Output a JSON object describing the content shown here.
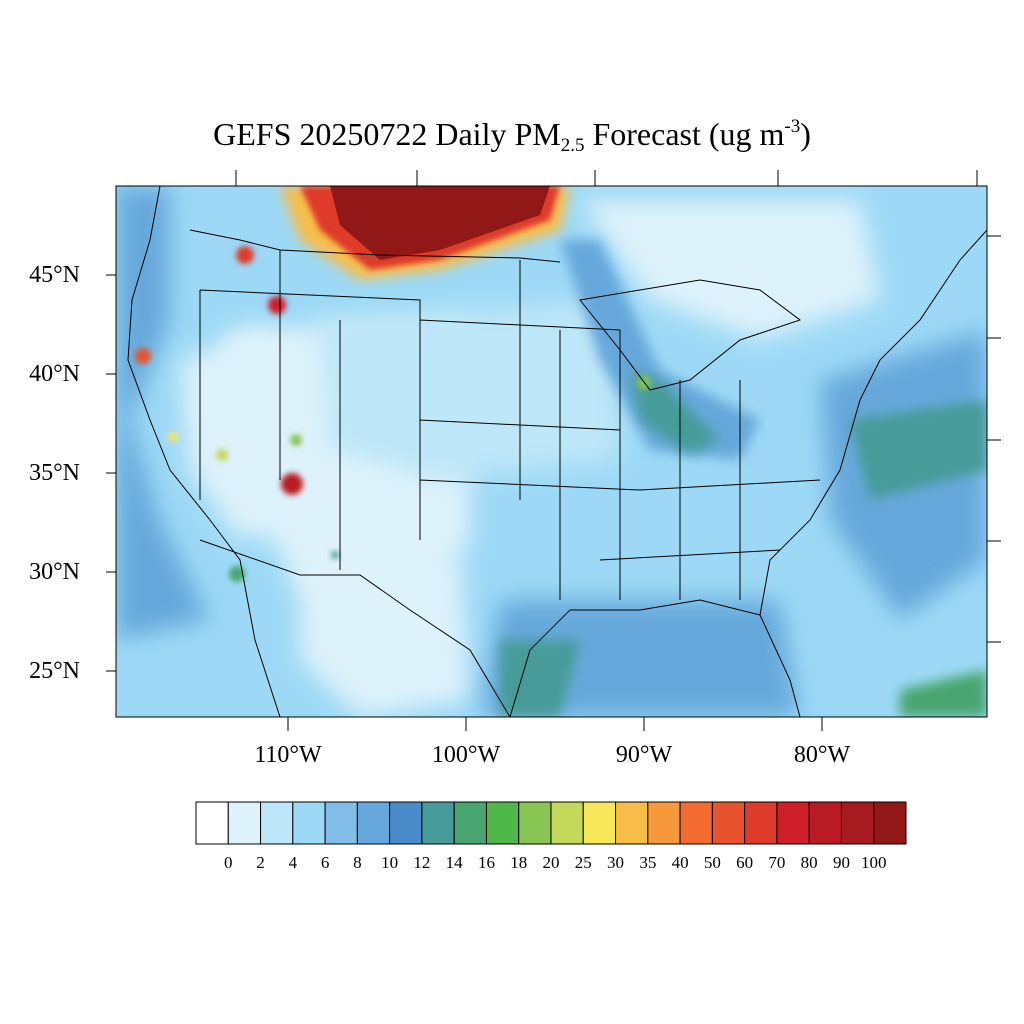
{
  "title": {
    "prefix": "GEFS 20250722 Daily PM",
    "subscript": "2.5",
    "middle": " Forecast (ug m",
    "superscript": "-3",
    "suffix": ")"
  },
  "axes": {
    "lat_labels": [
      {
        "value": 45,
        "text": "45°N"
      },
      {
        "value": 40,
        "text": "40°N"
      },
      {
        "value": 35,
        "text": "35°N"
      },
      {
        "value": 30,
        "text": "30°N"
      },
      {
        "value": 25,
        "text": "25°N"
      }
    ],
    "lon_labels": [
      {
        "value": -110,
        "text": "110°W"
      },
      {
        "value": -100,
        "text": "100°W"
      },
      {
        "value": -90,
        "text": "90°W"
      },
      {
        "value": -80,
        "text": "80°W"
      }
    ]
  },
  "colorbar": {
    "labels": [
      "0",
      "2",
      "4",
      "6",
      "8",
      "10",
      "12",
      "14",
      "16",
      "18",
      "20",
      "25",
      "30",
      "35",
      "40",
      "50",
      "60",
      "70",
      "80",
      "90",
      "100"
    ],
    "colors": [
      "#ffffff",
      "#def2fb",
      "#bde6f8",
      "#9dd9f6",
      "#81bde6",
      "#66a8db",
      "#4a8cc9",
      "#479b99",
      "#48a570",
      "#4eb848",
      "#87c451",
      "#c3d75a",
      "#f6e659",
      "#f8bd49",
      "#f7983c",
      "#f26c30",
      "#e8522c",
      "#de3b2a",
      "#cf1f29",
      "#b81b24",
      "#a51b1f",
      "#911817"
    ]
  },
  "plumes": [
    {
      "name": "northern-montana-smoke",
      "level": 100
    },
    {
      "name": "idaho-fire",
      "level": 70
    },
    {
      "name": "northern-california-fire",
      "level": 60
    },
    {
      "name": "arizona-fire",
      "level": 90
    },
    {
      "name": "washington-fire",
      "level": 80
    }
  ]
}
